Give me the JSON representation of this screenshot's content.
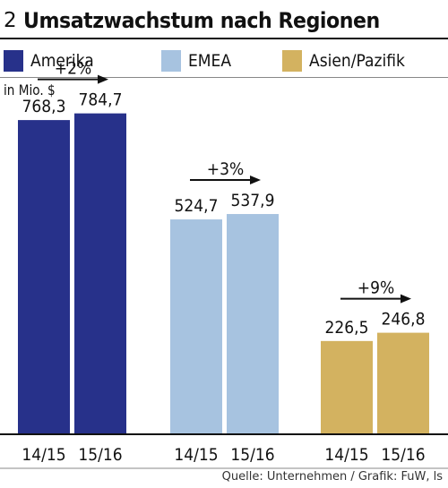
{
  "chart_data": {
    "type": "bar",
    "number": "2",
    "title": "Umsatzwachstum nach Regionen",
    "unit": "in Mio. $",
    "categories": [
      "14/15",
      "15/16"
    ],
    "ylim": [
      0,
      830
    ],
    "groups": [
      {
        "name": "Amerika",
        "color": "#27318a",
        "values": [
          "768,3",
          "784,7"
        ],
        "growth": "+2%"
      },
      {
        "name": "EMEA",
        "color": "#a7c3e0",
        "values": [
          "524,7",
          "537,9"
        ],
        "growth": "+3%"
      },
      {
        "name": "Asien/Pazifik",
        "color": "#d3b260",
        "values": [
          "226,5",
          "246,8"
        ],
        "growth": "+9%"
      }
    ],
    "source": "Quelle: Unternehmen / Grafik: FuW, ls"
  }
}
